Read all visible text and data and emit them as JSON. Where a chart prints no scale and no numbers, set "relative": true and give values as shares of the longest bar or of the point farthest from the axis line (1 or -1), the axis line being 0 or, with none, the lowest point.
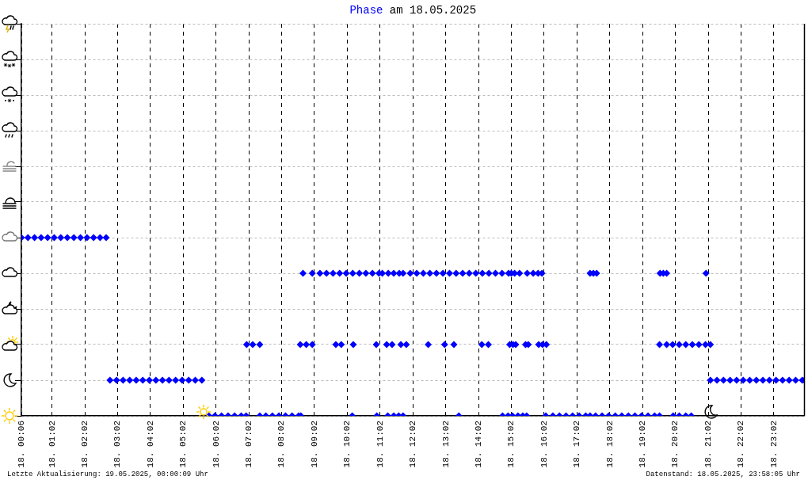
{
  "chart_data": {
    "type": "scatter",
    "title": "Phase am 18.05.2025",
    "annotations": [
      "Letzte Aktualisierung: 19.05.2025, 00:00:09 Uhr",
      "Datenstand: 18.05.2025, 23:58:05 Uhr"
    ],
    "relative": true,
    "grid": true,
    "legend": false,
    "marker": "diamond",
    "color": "#0000ff",
    "xlim": [
      "2025-05-18T00:06",
      "2025-05-18T23:58"
    ],
    "xticks": [
      {
        "value": "2025-05-18T00:06",
        "label": "18. 00:06"
      },
      {
        "value": "2025-05-18T01:02",
        "label": "18. 01:02"
      },
      {
        "value": "2025-05-18T02:02",
        "label": "18. 02:02"
      },
      {
        "value": "2025-05-18T03:02",
        "label": "18. 03:02"
      },
      {
        "value": "2025-05-18T04:02",
        "label": "18. 04:02"
      },
      {
        "value": "2025-05-18T05:02",
        "label": "18. 05:02"
      },
      {
        "value": "2025-05-18T06:02",
        "label": "18. 06:02"
      },
      {
        "value": "2025-05-18T07:02",
        "label": "18. 07:02"
      },
      {
        "value": "2025-05-18T08:02",
        "label": "18. 08:02"
      },
      {
        "value": "2025-05-18T09:02",
        "label": "18. 09:02"
      },
      {
        "value": "2025-05-18T10:02",
        "label": "18. 10:02"
      },
      {
        "value": "2025-05-18T11:02",
        "label": "18. 11:02"
      },
      {
        "value": "2025-05-18T12:02",
        "label": "18. 12:02"
      },
      {
        "value": "2025-05-18T13:02",
        "label": "18. 13:02"
      },
      {
        "value": "2025-05-18T14:02",
        "label": "18. 14:02"
      },
      {
        "value": "2025-05-18T15:02",
        "label": "18. 15:02"
      },
      {
        "value": "2025-05-18T16:02",
        "label": "18. 16:02"
      },
      {
        "value": "2025-05-18T17:02",
        "label": "18. 17:02"
      },
      {
        "value": "2025-05-18T18:02",
        "label": "18. 18:02"
      },
      {
        "value": "2025-05-18T19:02",
        "label": "18. 19:02"
      },
      {
        "value": "2025-05-18T20:02",
        "label": "18. 20:02"
      },
      {
        "value": "2025-05-18T21:02",
        "label": "18. 21:02"
      },
      {
        "value": "2025-05-18T22:02",
        "label": "18. 22:02"
      },
      {
        "value": "2025-05-18T23:02",
        "label": "18. 23:02"
      }
    ],
    "x": [
      "2025-05-18T00:06",
      "2025-05-18T00:18",
      "2025-05-18T00:30",
      "2025-05-18T00:42",
      "2025-05-18T00:54",
      "2025-05-18T01:06",
      "2025-05-18T01:18",
      "2025-05-18T01:30",
      "2025-05-18T01:42",
      "2025-05-18T01:54",
      "2025-05-18T02:06",
      "2025-05-18T02:18",
      "2025-05-18T02:30",
      "2025-05-18T02:41",
      "2025-05-18T02:48",
      "2025-05-18T03:00",
      "2025-05-18T03:12",
      "2025-05-18T03:24",
      "2025-05-18T03:36",
      "2025-05-18T03:48",
      "2025-05-18T04:00",
      "2025-05-18T04:12",
      "2025-05-18T04:24",
      "2025-05-18T04:36",
      "2025-05-18T04:48",
      "2025-05-18T05:00",
      "2025-05-18T05:12",
      "2025-05-18T05:24",
      "2025-05-18T05:36",
      "2025-05-18T05:49",
      "2025-05-18T06:00",
      "2025-05-18T06:12",
      "2025-05-18T06:24",
      "2025-05-18T06:36",
      "2025-05-18T06:48",
      "2025-05-18T06:57",
      "2025-05-18T07:22",
      "2025-05-18T07:33",
      "2025-05-18T07:45",
      "2025-05-18T07:57",
      "2025-05-18T08:09",
      "2025-05-18T08:21",
      "2025-05-18T08:33",
      "2025-05-18T08:37",
      "2025-05-18T10:11",
      "2025-05-18T10:56",
      "2025-05-18T11:16",
      "2025-05-18T11:27",
      "2025-05-18T11:36",
      "2025-05-18T11:44",
      "2025-05-18T13:26",
      "2025-05-18T14:46",
      "2025-05-18T14:56",
      "2025-05-18T15:04",
      "2025-05-18T15:14",
      "2025-05-18T15:23",
      "2025-05-18T15:30",
      "2025-05-18T16:05",
      "2025-05-18T16:18",
      "2025-05-18T16:30",
      "2025-05-18T16:42",
      "2025-05-18T16:54",
      "2025-05-18T17:06",
      "2025-05-18T17:18",
      "2025-05-18T17:26",
      "2025-05-18T17:36",
      "2025-05-18T17:48",
      "2025-05-18T18:00",
      "2025-05-18T18:12",
      "2025-05-18T18:24",
      "2025-05-18T18:36",
      "2025-05-18T18:48",
      "2025-05-18T19:00",
      "2025-05-18T19:12",
      "2025-05-18T19:24",
      "2025-05-18T19:33",
      "2025-05-18T19:58",
      "2025-05-18T20:09",
      "2025-05-18T20:21",
      "2025-05-18T20:31",
      "2025-05-18T06:58",
      "2025-05-18T07:09",
      "2025-05-18T07:22",
      "2025-05-18T08:36",
      "2025-05-18T08:47",
      "2025-05-18T08:58",
      "2025-05-18T09:41",
      "2025-05-18T09:51",
      "2025-05-18T10:13",
      "2025-05-18T10:55",
      "2025-05-18T11:14",
      "2025-05-18T11:24",
      "2025-05-18T11:40",
      "2025-05-18T11:50",
      "2025-05-18T12:30",
      "2025-05-18T13:00",
      "2025-05-18T13:17",
      "2025-05-18T14:08",
      "2025-05-18T14:20",
      "2025-05-18T14:59",
      "2025-05-18T15:05",
      "2025-05-18T15:10",
      "2025-05-18T15:28",
      "2025-05-18T15:33",
      "2025-05-18T15:52",
      "2025-05-18T15:59",
      "2025-05-18T16:06",
      "2025-05-18T19:33",
      "2025-05-18T19:46",
      "2025-05-18T19:57",
      "2025-05-18T20:09",
      "2025-05-18T20:21",
      "2025-05-18T20:33",
      "2025-05-18T20:45",
      "2025-05-18T20:57",
      "2025-05-18T21:06",
      "2025-05-18T08:41",
      "2025-05-18T08:58",
      "2025-05-18T09:12",
      "2025-05-18T09:24",
      "2025-05-18T09:36",
      "2025-05-18T09:48",
      "2025-05-18T10:00",
      "2025-05-18T10:12",
      "2025-05-18T10:24",
      "2025-05-18T10:36",
      "2025-05-18T10:48",
      "2025-05-18T11:00",
      "2025-05-18T11:06",
      "2025-05-18T11:17",
      "2025-05-18T11:27",
      "2025-05-18T11:37",
      "2025-05-18T11:44",
      "2025-05-18T11:57",
      "2025-05-18T12:09",
      "2025-05-18T12:21",
      "2025-05-18T12:33",
      "2025-05-18T12:45",
      "2025-05-18T12:57",
      "2025-05-18T13:09",
      "2025-05-18T13:21",
      "2025-05-18T13:33",
      "2025-05-18T13:45",
      "2025-05-18T13:57",
      "2025-05-18T14:09",
      "2025-05-18T14:21",
      "2025-05-18T14:33",
      "2025-05-18T14:45",
      "2025-05-18T14:57",
      "2025-05-18T15:02",
      "2025-05-18T15:08",
      "2025-05-18T15:17",
      "2025-05-18T15:31",
      "2025-05-18T15:42",
      "2025-05-18T15:51",
      "2025-05-18T15:58",
      "2025-05-18T17:26",
      "2025-05-18T17:32",
      "2025-05-18T17:38",
      "2025-05-18T19:34",
      "2025-05-18T19:40",
      "2025-05-18T19:46",
      "2025-05-18T20:58",
      "2025-05-18T21:06",
      "2025-05-18T21:18",
      "2025-05-18T21:30",
      "2025-05-18T21:42",
      "2025-05-18T21:54",
      "2025-05-18T22:06",
      "2025-05-18T22:18",
      "2025-05-18T22:30",
      "2025-05-18T22:42",
      "2025-05-18T22:54",
      "2025-05-18T23:06",
      "2025-05-18T23:18",
      "2025-05-18T23:30",
      "2025-05-18T23:42",
      "2025-05-18T23:54",
      "2025-05-18T23:58"
    ],
    "values": [
      1,
      1,
      1,
      1,
      1,
      1,
      1,
      1,
      1,
      1,
      1,
      1,
      1,
      1,
      0.2,
      0.2,
      0.2,
      0.2,
      0.2,
      0.2,
      0.2,
      0.2,
      0.2,
      0.2,
      0.2,
      0.2,
      0.2,
      0.2,
      0.2,
      0,
      0,
      0,
      0,
      0,
      0,
      0,
      0,
      0,
      0,
      0,
      0,
      0,
      0,
      0,
      0,
      0,
      0,
      0,
      0,
      0,
      0,
      0,
      0,
      0,
      0,
      0,
      0,
      0,
      0,
      0,
      0,
      0,
      0,
      0,
      0,
      0,
      0,
      0,
      0,
      0,
      0,
      0,
      0,
      0,
      0,
      0,
      0,
      0,
      0,
      0,
      0.4,
      0.4,
      0.4,
      0.4,
      0.4,
      0.4,
      0.4,
      0.4,
      0.4,
      0.4,
      0.4,
      0.4,
      0.4,
      0.4,
      0.4,
      0.4,
      0.4,
      0.4,
      0.4,
      0.4,
      0.4,
      0.4,
      0.4,
      0.4,
      0.4,
      0.4,
      0.4,
      0.4,
      0.4,
      0.4,
      0.4,
      0.4,
      0.4,
      0.4,
      0.4,
      0.4,
      0.8,
      0.8,
      0.8,
      0.8,
      0.8,
      0.8,
      0.8,
      0.8,
      0.8,
      0.8,
      0.8,
      0.8,
      0.8,
      0.8,
      0.8,
      0.8,
      0.8,
      0.8,
      0.8,
      0.8,
      0.8,
      0.8,
      0.8,
      0.8,
      0.8,
      0.8,
      0.8,
      0.8,
      0.8,
      0.8,
      0.8,
      0.8,
      0.8,
      0.8,
      0.8,
      0.8,
      0.8,
      0.8,
      0.8,
      0.8,
      0.8,
      0.8,
      0.8,
      0.8,
      0.8,
      0.8,
      0.8,
      0.2,
      0.2,
      0.2,
      0.2,
      0.2,
      0.2,
      0.2,
      0.2,
      0.2,
      0.2,
      0.2,
      0.2,
      0.2,
      0.2,
      0.2,
      0.2
    ]
  }
}
